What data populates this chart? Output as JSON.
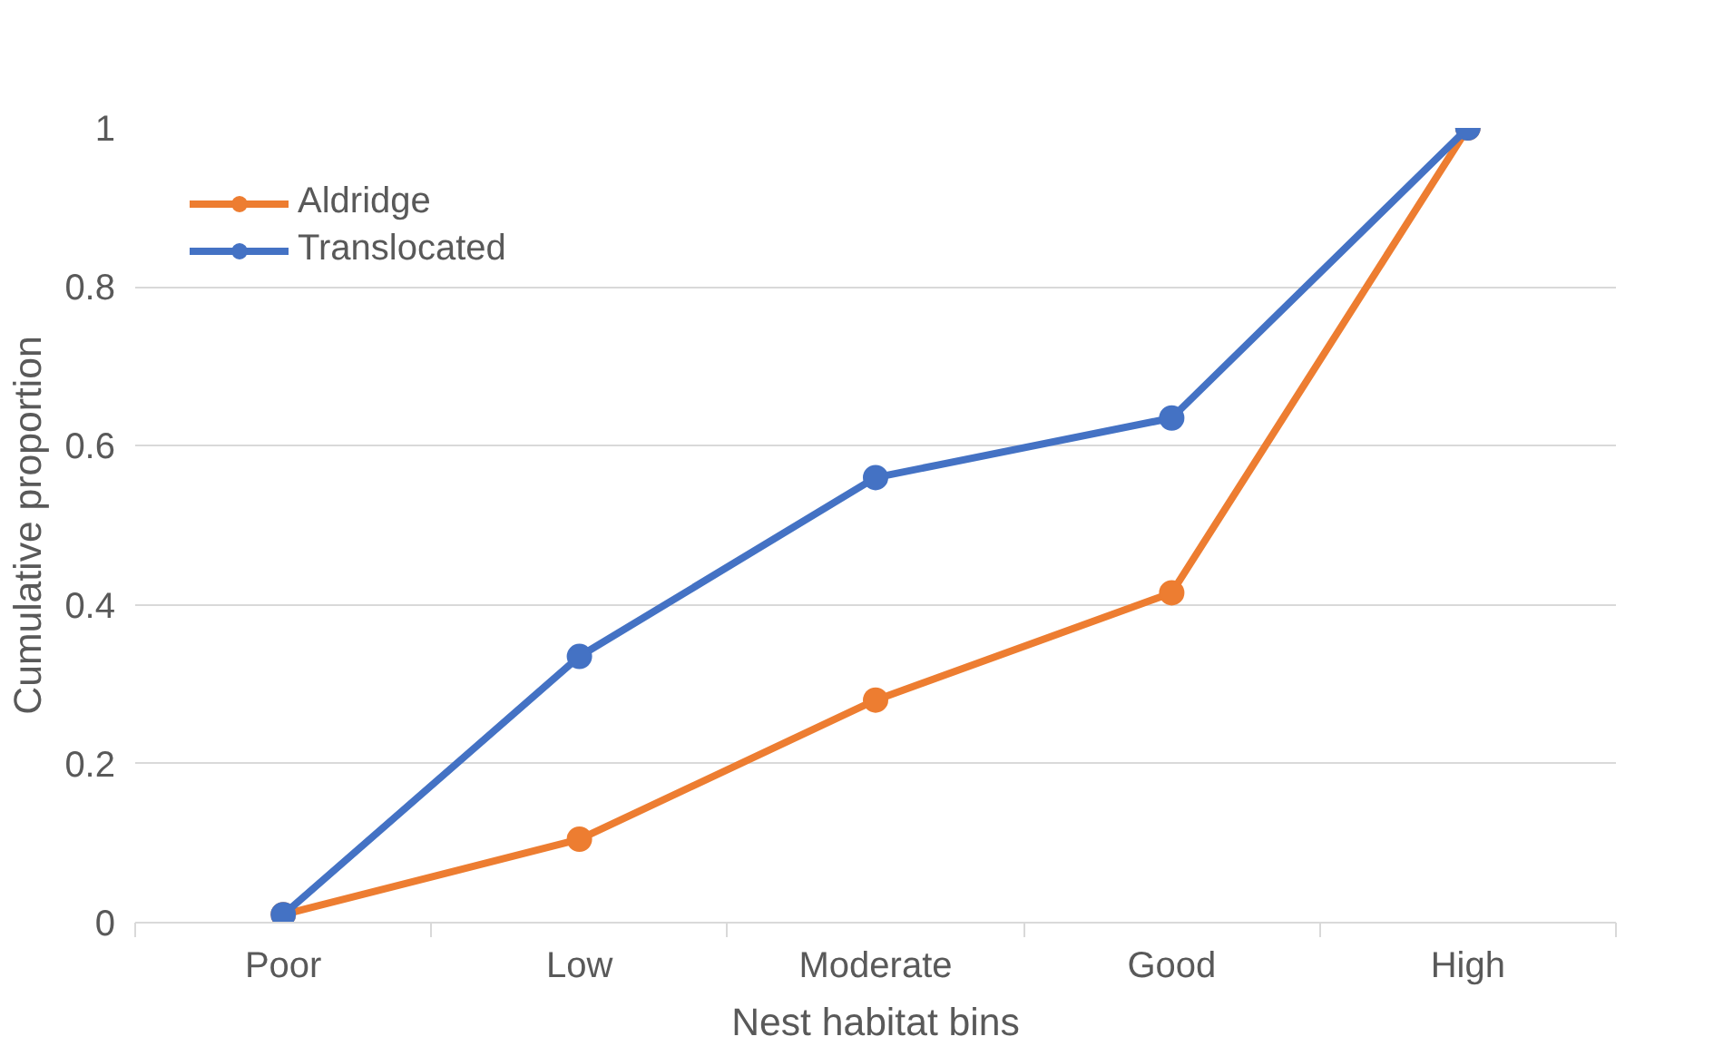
{
  "chart_data": {
    "type": "line",
    "xlabel": "Nest habitat bins",
    "ylabel": "Cumulative proportion",
    "categories": [
      "Poor",
      "Low",
      "Moderate",
      "Good",
      "High"
    ],
    "series": [
      {
        "name": "Aldridge",
        "color": "#ed7d31",
        "values": [
          0.01,
          0.105,
          0.28,
          0.415,
          1
        ]
      },
      {
        "name": "Translocated",
        "color": "#4472c4",
        "values": [
          0.01,
          0.335,
          0.56,
          0.635,
          1
        ]
      }
    ],
    "ylim": [
      0,
      1
    ],
    "yticks": [
      0,
      0.2,
      0.4,
      0.6,
      0.8,
      1
    ],
    "grid": "y",
    "legend": "top left",
    "marker": "circle",
    "line_style": "solid"
  }
}
